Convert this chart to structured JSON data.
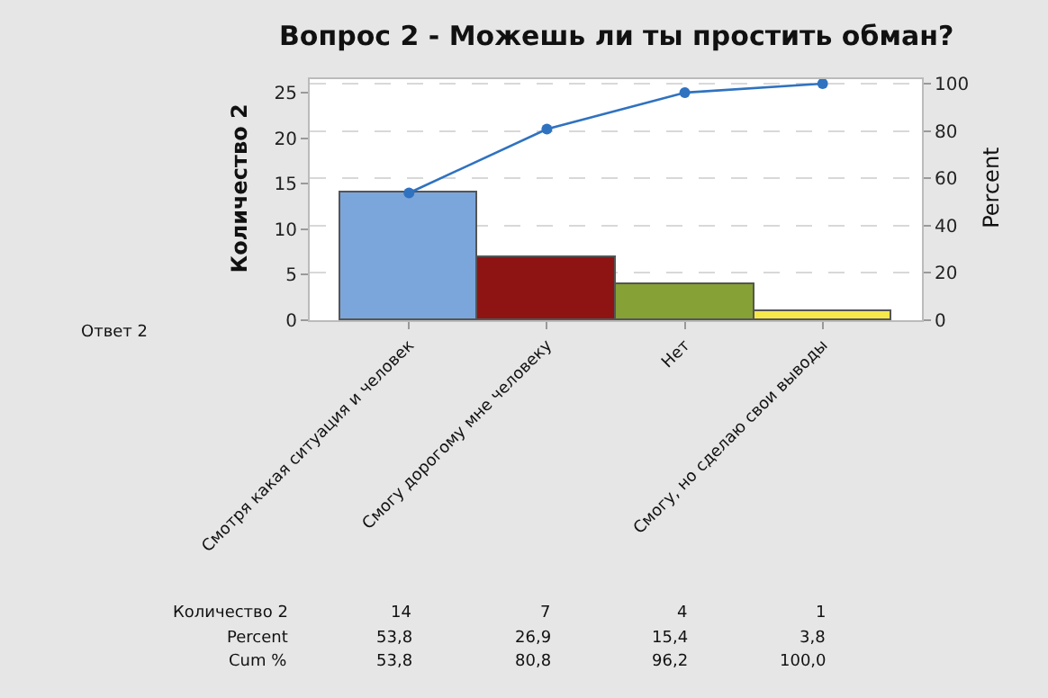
{
  "chart_data": {
    "type": "bar",
    "title": "Вопрос 2 - Можешь ли ты простить обман?",
    "xlabel": "Ответ 2",
    "ylabel": "Количество 2",
    "y2label": "Percent",
    "categories": [
      "Смотря какая ситуация и человек",
      "Смогу дорогому мне человеку",
      "Нет",
      "Смогу, но сделаю свои выводы"
    ],
    "series": [
      {
        "colors": [
          "#7ba6db",
          "#8e1414",
          "#86a136",
          "#f6e84a"
        ],
        "values": [
          14,
          7,
          4,
          1
        ],
        "value_labels": [
          "14",
          "7",
          "4",
          "1"
        ]
      },
      {
        "type": "line",
        "axis": "y2",
        "color": "#2f72c0",
        "marker": "circle",
        "values": [
          53.8,
          80.8,
          96.2,
          100
        ],
        "value_labels": [
          "53,8",
          "80,8",
          "96,2",
          "100,0"
        ]
      }
    ],
    "annotations": [
      "Количество 2",
      "Percent",
      "53,8",
      "26,9",
      "15,4",
      "3,8",
      "Cum %"
    ],
    "ylim": [
      0,
      26.5
    ],
    "yticks": [
      0,
      5,
      10,
      15,
      20,
      25
    ],
    "y2lim": [
      0,
      101.9
    ],
    "y2ticks": [
      0,
      20,
      40,
      60,
      80,
      100
    ],
    "grid": true,
    "legend": false
  }
}
